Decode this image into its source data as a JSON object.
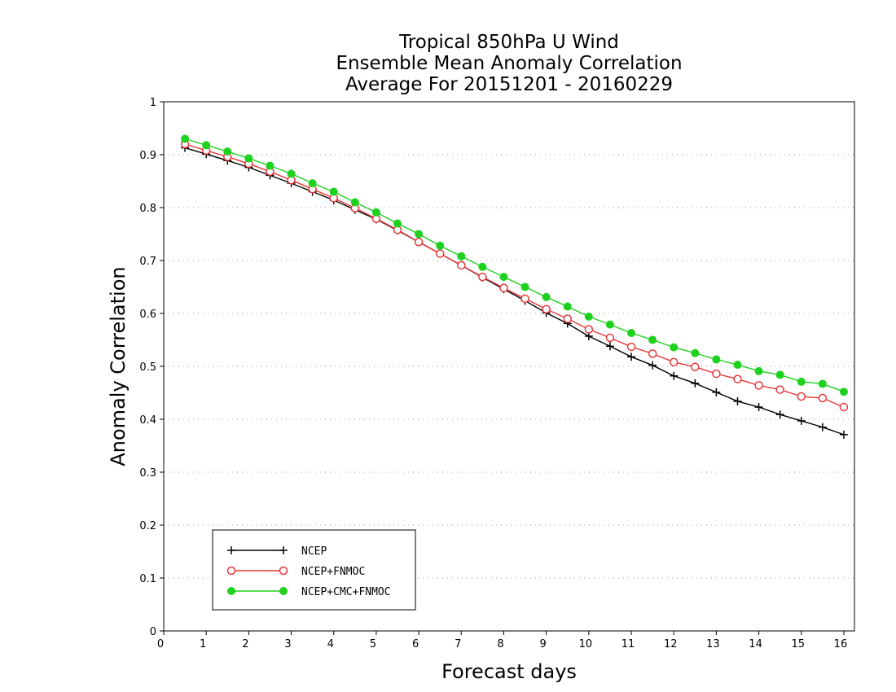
{
  "chart_data": {
    "type": "line",
    "title": [
      "Tropical 850hPa U Wind",
      "Ensemble Mean Anomaly Correlation",
      "Average For 20151201 - 20160229"
    ],
    "xlabel": "Forecast days",
    "ylabel": "Anomaly Correlation",
    "xlim": [
      0,
      16.25
    ],
    "ylim": [
      0,
      1
    ],
    "xticks": [
      "0",
      "1",
      "2",
      "3",
      "4",
      "5",
      "6",
      "7",
      "8",
      "9",
      "10",
      "11",
      "12",
      "13",
      "14",
      "15",
      "16"
    ],
    "yticks": [
      "0",
      "0.1",
      "0.2",
      "0.3",
      "0.4",
      "0.5",
      "0.6",
      "0.7",
      "0.8",
      "0.9",
      "1"
    ],
    "grid": "horizontal dotted",
    "legend_position": "bottom-left",
    "x": [
      0.5,
      1,
      1.5,
      2,
      2.5,
      3,
      3.5,
      4,
      4.5,
      5,
      5.5,
      6,
      6.5,
      7,
      7.5,
      8,
      8.5,
      9,
      9.5,
      10,
      10.5,
      11,
      11.5,
      12,
      12.5,
      13,
      13.5,
      14,
      14.5,
      15,
      15.5,
      16
    ],
    "series": [
      {
        "name": "NCEP",
        "color": "#000000",
        "marker": "plus",
        "values": [
          0.913,
          0.901,
          0.889,
          0.876,
          0.861,
          0.846,
          0.83,
          0.814,
          0.796,
          0.778,
          0.757,
          0.735,
          0.713,
          0.691,
          0.668,
          0.646,
          0.624,
          0.601,
          0.581,
          0.557,
          0.538,
          0.518,
          0.502,
          0.482,
          0.468,
          0.451,
          0.434,
          0.423,
          0.409,
          0.397,
          0.385,
          0.371
        ]
      },
      {
        "name": "NCEP+FNMOC",
        "color": "#e6393c",
        "marker": "open-circle",
        "values": [
          0.92,
          0.908,
          0.896,
          0.883,
          0.868,
          0.852,
          0.835,
          0.818,
          0.799,
          0.779,
          0.758,
          0.735,
          0.713,
          0.691,
          0.669,
          0.648,
          0.628,
          0.608,
          0.59,
          0.57,
          0.554,
          0.537,
          0.524,
          0.508,
          0.499,
          0.486,
          0.476,
          0.464,
          0.456,
          0.443,
          0.44,
          0.423
        ]
      },
      {
        "name": "NCEP+CMC+FNMOC",
        "color": "#1ed11e",
        "marker": "filled-circle",
        "values": [
          0.93,
          0.918,
          0.906,
          0.893,
          0.879,
          0.864,
          0.846,
          0.83,
          0.81,
          0.791,
          0.77,
          0.75,
          0.728,
          0.708,
          0.688,
          0.669,
          0.65,
          0.631,
          0.613,
          0.594,
          0.579,
          0.563,
          0.55,
          0.536,
          0.525,
          0.513,
          0.503,
          0.491,
          0.484,
          0.471,
          0.467,
          0.452
        ]
      }
    ]
  }
}
